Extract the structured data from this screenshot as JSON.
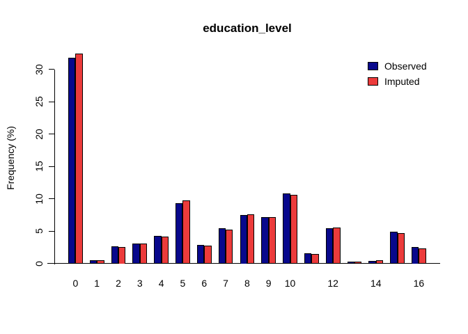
{
  "title": "education_level",
  "ylabel": "Frequency (%)",
  "colors": {
    "observed": "#08088C",
    "imputed": "#EC3B3B",
    "axis": "#000000",
    "background": "#FFFFFF"
  },
  "chart_data": {
    "type": "bar",
    "title": "education_level",
    "xlabel": "",
    "ylabel": "Frequency (%)",
    "categories": [
      "0",
      "1",
      "2",
      "3",
      "4",
      "5",
      "6",
      "7",
      "8",
      "9",
      "10",
      "11",
      "12",
      "13",
      "14",
      "15",
      "16"
    ],
    "x_tick_labels": [
      "0",
      "1",
      "2",
      "3",
      "4",
      "5",
      "6",
      "7",
      "8",
      "9",
      "10",
      "",
      "12",
      "",
      "14",
      "",
      "16"
    ],
    "series": [
      {
        "name": "Observed",
        "color": "#08088C",
        "values": [
          31.8,
          0.5,
          2.6,
          3.1,
          4.3,
          9.3,
          2.8,
          5.4,
          7.5,
          7.2,
          10.8,
          1.6,
          5.4,
          0.3,
          0.4,
          4.9,
          2.5
        ]
      },
      {
        "name": "Imputed",
        "color": "#EC3B3B",
        "values": [
          32.4,
          0.5,
          2.5,
          3.1,
          4.1,
          9.7,
          2.7,
          5.2,
          7.6,
          7.2,
          10.6,
          1.5,
          5.5,
          0.3,
          0.5,
          4.7,
          2.3
        ]
      }
    ],
    "yticks": [
      0,
      5,
      10,
      15,
      20,
      25,
      30
    ],
    "ylim": [
      0,
      33.5
    ],
    "grid": false,
    "legend_position": "top-right",
    "legend": [
      "Observed",
      "Imputed"
    ]
  }
}
